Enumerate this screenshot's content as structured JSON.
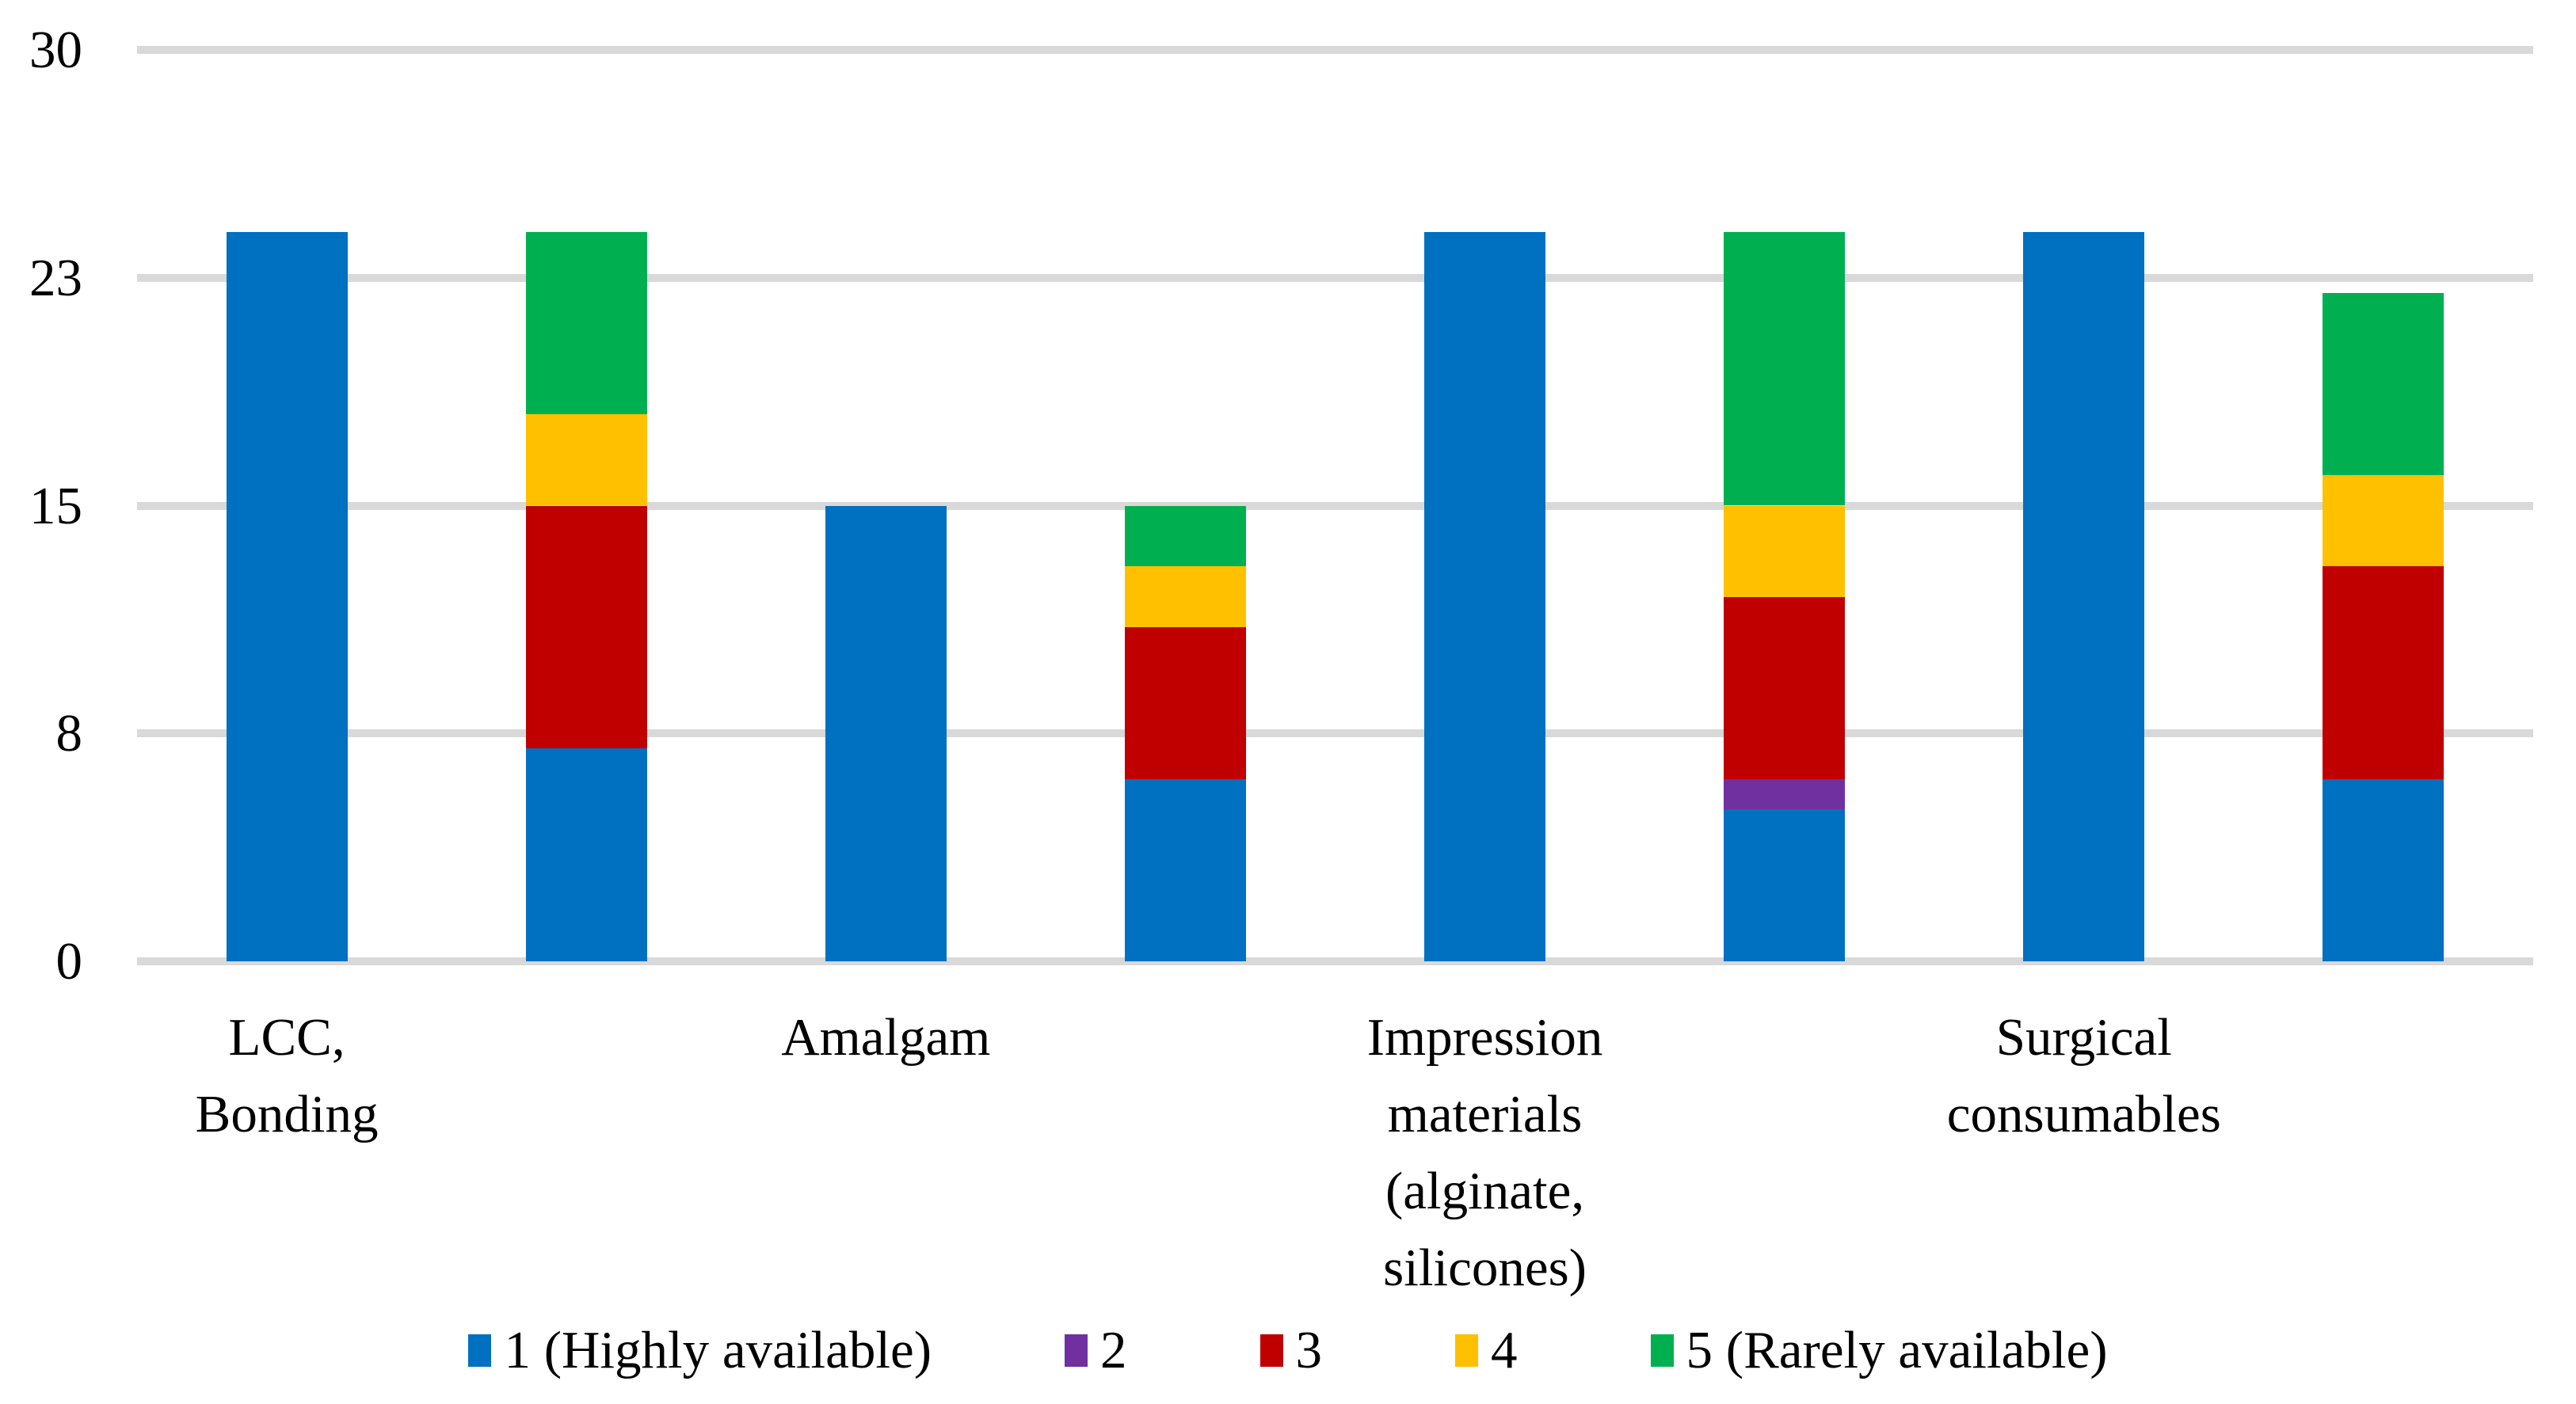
{
  "figure": {
    "background": "#ffffff",
    "gridline_color": "#d9d9d9",
    "text_color": "#000000"
  },
  "chart_data": {
    "type": "bar",
    "stacked": true,
    "title": "",
    "xlabel": "",
    "ylabel": "",
    "ylim": [
      0,
      30
    ],
    "grid": true,
    "legend_position": "bottom",
    "y_ticks": [
      {
        "label": "0",
        "value": 0
      },
      {
        "label": "8",
        "value": 7.5
      },
      {
        "label": "15",
        "value": 15
      },
      {
        "label": "23",
        "value": 22.5
      },
      {
        "label": "30",
        "value": 30
      }
    ],
    "series_names": [
      "1 (Highly available)",
      "2",
      "3",
      "4",
      "5 (Rarely available)"
    ],
    "series_colors": [
      "#0070C0",
      "#7030A0",
      "#C00000",
      "#FFC000",
      "#00B050"
    ],
    "categories": [
      {
        "label": "LCC, Bonding",
        "label_lines": [
          "LCC,",
          "Bonding"
        ],
        "bars": [
          [
            24,
            0,
            0,
            0,
            0
          ],
          [
            7,
            0,
            8,
            3,
            6
          ]
        ]
      },
      {
        "label": "Amalgam",
        "label_lines": [
          "Amalgam"
        ],
        "bars": [
          [
            15,
            0,
            0,
            0,
            0
          ],
          [
            6,
            0,
            5,
            2,
            2
          ]
        ]
      },
      {
        "label": "Impression materials (alginate, silicones)",
        "label_lines": [
          "Impression",
          "materials",
          "(alginate,",
          "silicones)"
        ],
        "bars": [
          [
            24,
            0,
            0,
            0,
            0
          ],
          [
            5,
            1,
            6,
            3,
            9
          ]
        ]
      },
      {
        "label": "Surgical consumables",
        "label_lines": [
          "Surgical",
          "consumables"
        ],
        "bars": [
          [
            24,
            0,
            0,
            0,
            0
          ],
          [
            6,
            0,
            7,
            3,
            6
          ]
        ]
      }
    ]
  },
  "legend": {
    "items": [
      {
        "label": "1 (Highly available)",
        "color": "#0070C0"
      },
      {
        "label": "2",
        "color": "#7030A0"
      },
      {
        "label": "3",
        "color": "#C00000"
      },
      {
        "label": "4",
        "color": "#FFC000"
      },
      {
        "label": "5 (Rarely available)",
        "color": "#00B050"
      }
    ]
  }
}
